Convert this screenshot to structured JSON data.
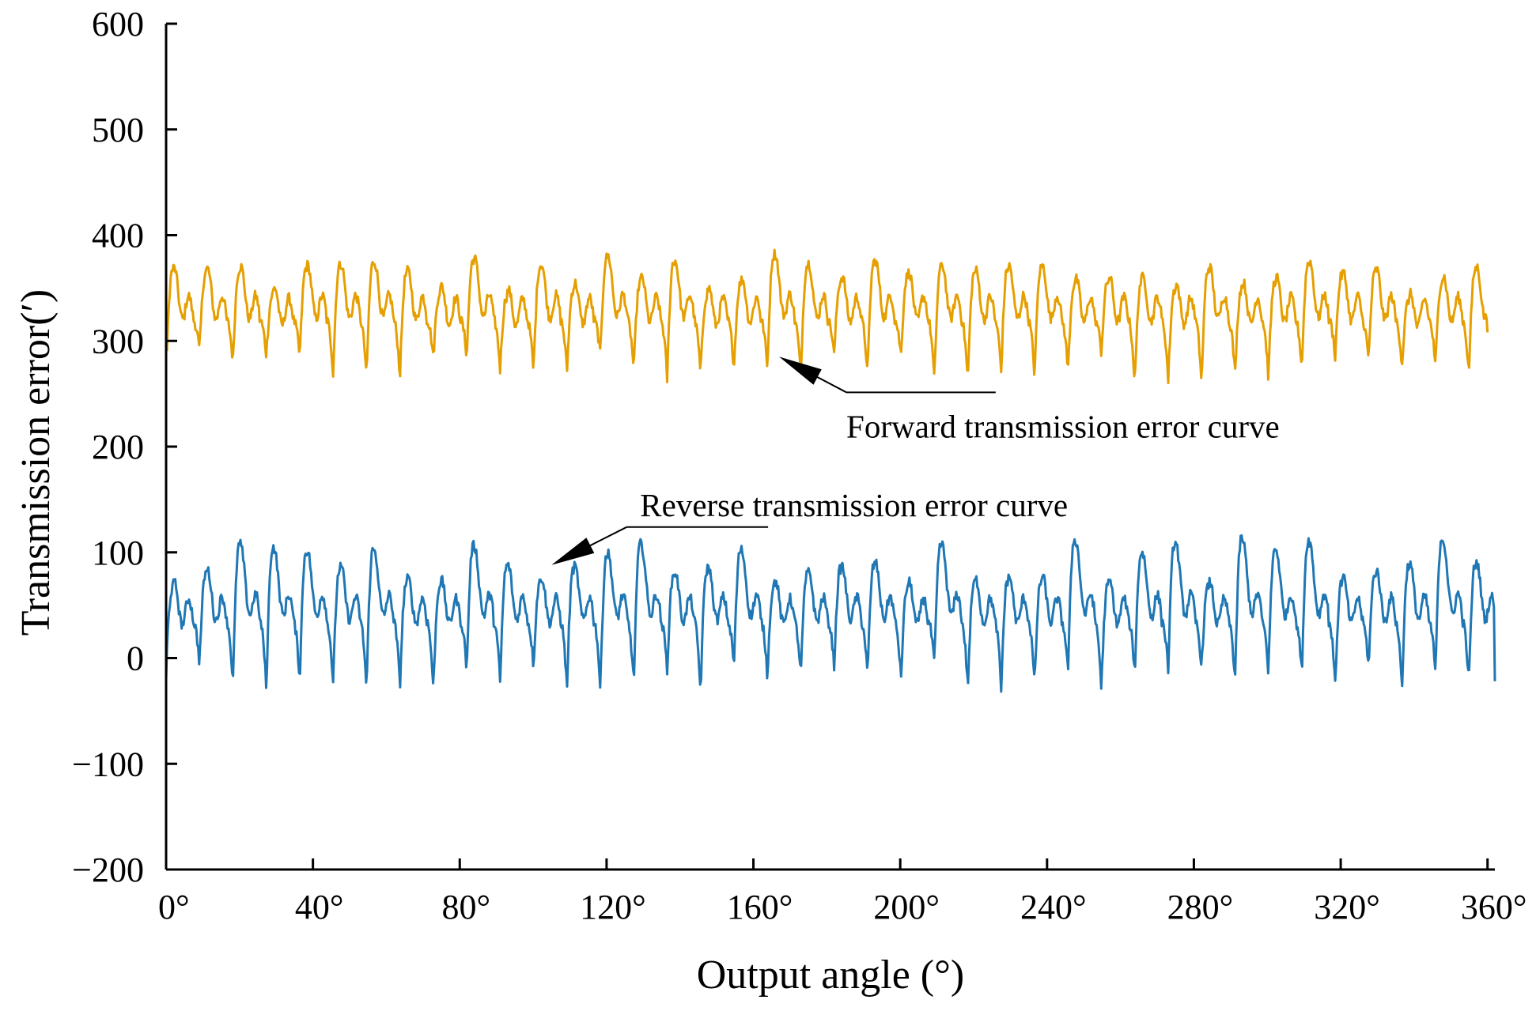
{
  "chart_data": {
    "type": "line",
    "xlabel": "Output angle (°)",
    "ylabel": "Transmission error(′)",
    "xlim": [
      0,
      362
    ],
    "ylim": [
      -200,
      600
    ],
    "x_ticks": [
      {
        "value": 0,
        "label": "0°"
      },
      {
        "value": 40,
        "label": "40°"
      },
      {
        "value": 80,
        "label": "80°"
      },
      {
        "value": 120,
        "label": "120°"
      },
      {
        "value": 160,
        "label": "160°"
      },
      {
        "value": 200,
        "label": "200°"
      },
      {
        "value": 240,
        "label": "240°"
      },
      {
        "value": 280,
        "label": "280°"
      },
      {
        "value": 320,
        "label": "320°"
      },
      {
        "value": 360,
        "label": "360°"
      }
    ],
    "y_ticks": [
      {
        "value": 600,
        "label": "600"
      },
      {
        "value": 500,
        "label": "500"
      },
      {
        "value": 400,
        "label": "400"
      },
      {
        "value": 300,
        "label": "300"
      },
      {
        "value": 200,
        "label": "200"
      },
      {
        "value": 100,
        "label": "100"
      },
      {
        "value": 0,
        "label": "0"
      },
      {
        "value": -100,
        "label": "−100"
      },
      {
        "value": -200,
        "label": "−200"
      }
    ],
    "grid": false,
    "legend": "none",
    "series": [
      {
        "color": "#E69F00",
        "x_start": 0,
        "x_end": 360,
        "period_deg": 9.1,
        "mean": 320,
        "peak_min": 335,
        "peak_max": 382,
        "trough_min": 258,
        "trough_max": 290,
        "start_value": 305,
        "end_value": 308
      },
      {
        "color": "#1F77B4",
        "x_start": 0,
        "x_end": 362,
        "period_deg": 9.1,
        "mean": 35,
        "peak_min": 65,
        "peak_max": 113,
        "trough_min": -35,
        "trough_max": -5,
        "start_value": -20,
        "end_value": -22
      }
    ],
    "annotations": [
      {
        "text": "Forward transmission error curve",
        "series": 0,
        "point_x": 167,
        "point_y": 285,
        "anchor": "right-below"
      },
      {
        "text": "Reverse transmission error curve",
        "series": 1,
        "point_x": 105,
        "point_y": 88,
        "anchor": "right-above"
      }
    ]
  }
}
